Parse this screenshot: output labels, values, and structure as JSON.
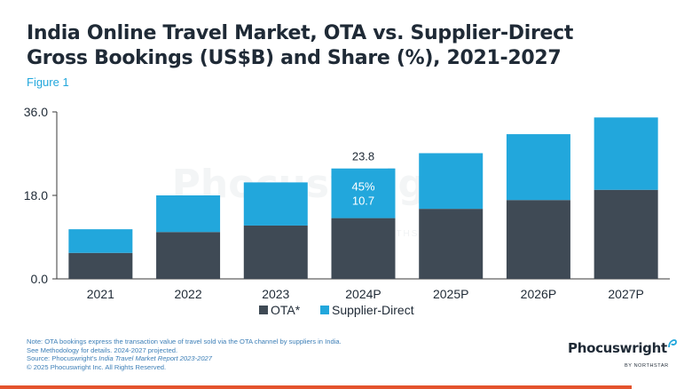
{
  "header": {
    "title_line1": "India Online Travel Market, OTA vs. Supplier-Direct",
    "title_line2": "Gross Bookings (US$B) and Share (%), 2021-2027",
    "subtitle": "Figure 1"
  },
  "watermark": {
    "brand": "Phocuswright",
    "byline": "BY NORTHSTAR"
  },
  "colors": {
    "ota": "#3f4a55",
    "supplier_direct": "#22a7dc",
    "accent_bar": "#e4532d",
    "title": "#1f2a36"
  },
  "chart_data": {
    "type": "bar",
    "stacked": true,
    "categories": [
      "2021",
      "2022",
      "2023",
      "2024P",
      "2025P",
      "2026P",
      "2027P"
    ],
    "series": [
      {
        "name": "OTA*",
        "values": [
          5.6,
          10.1,
          11.5,
          13.1,
          15.1,
          17.0,
          19.2
        ]
      },
      {
        "name": "Supplier-Direct",
        "values": [
          5.1,
          7.9,
          9.3,
          10.7,
          12.0,
          14.2,
          15.6
        ]
      }
    ],
    "yticks": [
      "0.0",
      "18.0",
      "36.0"
    ],
    "ylim": [
      0,
      36
    ],
    "annotations": {
      "category": "2024P",
      "total_label": "23.8",
      "share_label": "45%",
      "value_label": "10.7"
    },
    "legend": [
      "OTA*",
      "Supplier-Direct"
    ],
    "legend_position": "bottom-center",
    "grid": false
  },
  "footer": {
    "note1": "Note: OTA bookings express the transaction value of travel sold via the OTA channel by suppliers in India.",
    "note2": "See Methodology for details. 2024-2027 projected.",
    "source_prefix": "Source: Phocuswright's ",
    "source_title": "India Travel Market Report 2023-2027",
    "copyright": "© 2025 Phocuswright Inc. All Rights Reserved."
  },
  "logo": {
    "brand": "Phocuswright",
    "byline": "BY NORTHSTAR"
  }
}
